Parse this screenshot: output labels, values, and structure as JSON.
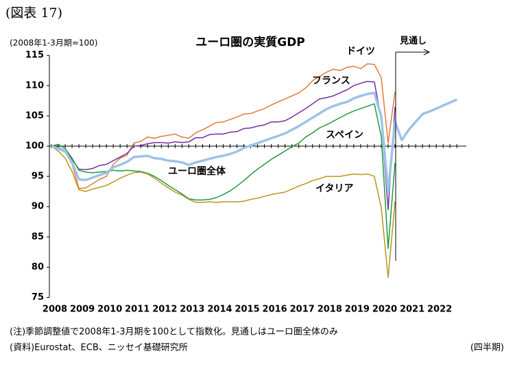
{
  "figure_label": "(図表 17)",
  "chart_data": {
    "type": "line",
    "title": "ユーロ圏の実質GDP",
    "y_unit_label": "(2008年1-3月期=100)",
    "x_unit_label": "(四半期)",
    "forecast_label": "見通し",
    "note": "(注)季節調整値で2008年1-3月期を100として指数化。見通しはユーロ圏全体のみ",
    "source": "(資料)Eurostat、ECB、ニッセイ基礎研究所",
    "categories": [
      "2008",
      null,
      null,
      null,
      "2009",
      null,
      null,
      null,
      "2010",
      null,
      null,
      null,
      "2011",
      null,
      null,
      null,
      "2012",
      null,
      null,
      null,
      "2013",
      null,
      null,
      null,
      "2014",
      null,
      null,
      null,
      "2015",
      null,
      null,
      null,
      "2016",
      null,
      null,
      null,
      "2017",
      null,
      null,
      null,
      "2018",
      null,
      null,
      null,
      "2019",
      null,
      null,
      null,
      "2020",
      null,
      null,
      null,
      "2021",
      null,
      null,
      null,
      "2022",
      null,
      null,
      null
    ],
    "ylim": [
      75,
      115
    ],
    "yticks": [
      75,
      80,
      85,
      90,
      95,
      100,
      105,
      110,
      115
    ],
    "series": [
      {
        "name": "ドイツ",
        "color": "#e07b39",
        "values": [
          100,
          99.5,
          99.0,
          97.0,
          93.0,
          93.1,
          93.8,
          94.5,
          95.0,
          97.0,
          98.0,
          98.5,
          100.5,
          100.8,
          101.5,
          101.3,
          101.6,
          101.8,
          102.0,
          101.5,
          101.3,
          102.2,
          102.7,
          103.3,
          103.9,
          104.0,
          104.4,
          104.8,
          105.3,
          105.4,
          105.8,
          106.2,
          106.8,
          107.3,
          107.8,
          108.3,
          108.8,
          109.6,
          110.8,
          111.5,
          112.2,
          112.7,
          112.5,
          113.0,
          113.2,
          112.8,
          113.6,
          113.5,
          111.3,
          100.5,
          109.0,
          null,
          null,
          null,
          null,
          null,
          null,
          null,
          null,
          null
        ]
      },
      {
        "name": "フランス",
        "color": "#7030a0",
        "values": [
          100,
          99.8,
          99.3,
          97.8,
          96.2,
          96.1,
          96.3,
          96.8,
          97.0,
          97.6,
          98.2,
          98.8,
          100.0,
          100.1,
          100.4,
          100.6,
          100.6,
          100.5,
          100.7,
          100.6,
          100.7,
          101.4,
          101.4,
          101.9,
          102.0,
          102.0,
          102.3,
          102.4,
          102.9,
          103.0,
          103.3,
          103.5,
          104.0,
          104.0,
          104.2,
          104.8,
          105.5,
          106.2,
          107.0,
          107.8,
          108.0,
          108.3,
          108.8,
          109.3,
          110.0,
          110.4,
          110.7,
          110.6,
          104.4,
          89.5,
          106.5,
          null,
          null,
          null,
          null,
          null,
          null,
          null,
          null,
          null
        ]
      },
      {
        "name": "スペイン",
        "color": "#1e9a3c",
        "values": [
          100,
          100.3,
          99.6,
          98.0,
          96.0,
          95.7,
          95.6,
          95.7,
          95.8,
          96.0,
          95.9,
          96.0,
          95.9,
          95.8,
          95.5,
          95.0,
          94.3,
          93.5,
          92.8,
          92.1,
          91.3,
          91.1,
          91.1,
          91.2,
          91.5,
          92.0,
          92.6,
          93.4,
          94.3,
          95.3,
          96.2,
          97.0,
          97.8,
          98.5,
          99.2,
          99.9,
          100.5,
          101.5,
          102.2,
          103.0,
          103.5,
          104.1,
          104.7,
          105.3,
          105.8,
          106.2,
          106.6,
          107.0,
          101.6,
          83.1,
          97.2,
          null,
          null,
          null,
          null,
          null,
          null,
          null,
          null,
          null
        ]
      },
      {
        "name": "イタリア",
        "color": "#b8961e",
        "values": [
          100,
          99.2,
          98.0,
          95.8,
          92.8,
          92.5,
          92.9,
          93.2,
          93.5,
          94.1,
          94.7,
          95.2,
          95.6,
          95.7,
          95.4,
          94.7,
          93.9,
          93.1,
          92.4,
          91.9,
          91.2,
          90.7,
          90.7,
          90.8,
          90.7,
          90.8,
          90.8,
          90.8,
          90.9,
          91.2,
          91.4,
          91.7,
          92.0,
          92.2,
          92.4,
          92.9,
          93.4,
          93.8,
          94.3,
          94.6,
          95.0,
          95.0,
          95.0,
          95.2,
          95.4,
          95.3,
          95.4,
          95.0,
          89.8,
          78.3,
          90.8,
          null,
          null,
          null,
          null,
          null,
          null,
          null,
          null,
          null
        ]
      },
      {
        "name": "ユーロ圏全体",
        "color": "#9dc3e6",
        "values": [
          100,
          99.6,
          99.2,
          97.3,
          94.5,
          94.4,
          94.8,
          95.2,
          95.6,
          96.5,
          96.9,
          97.4,
          98.2,
          98.3,
          98.4,
          98.0,
          97.9,
          97.6,
          97.5,
          97.3,
          96.9,
          97.3,
          97.6,
          97.9,
          98.2,
          98.4,
          98.7,
          99.1,
          99.7,
          100.1,
          100.5,
          100.9,
          101.3,
          101.7,
          102.1,
          102.7,
          103.3,
          104.0,
          104.7,
          105.4,
          106.1,
          106.6,
          107.0,
          107.3,
          107.9,
          108.3,
          108.6,
          108.8,
          104.9,
          92.5,
          104.0,
          101.0,
          102.7,
          104.0,
          105.3,
          105.7,
          106.2,
          106.7,
          107.2,
          107.7
        ]
      }
    ]
  }
}
